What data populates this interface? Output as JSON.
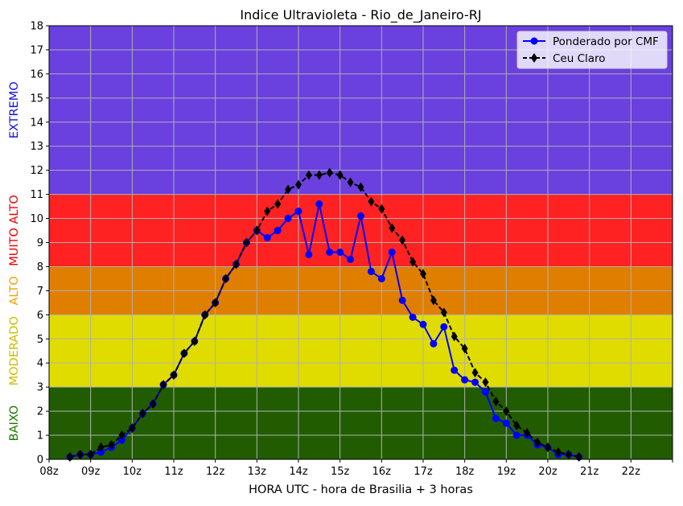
{
  "chart_data": {
    "type": "line",
    "title": "Indice Ultravioleta - Rio_de_Janeiro-RJ",
    "xlabel": "HORA UTC - hora de Brasilia + 3 horas",
    "ylabel": "",
    "xlim": [
      8,
      23
    ],
    "ylim": [
      0,
      18
    ],
    "grid": true,
    "legend_position": "top-right",
    "x_ticks": [
      8,
      9,
      10,
      11,
      12,
      13,
      14,
      15,
      16,
      17,
      18,
      19,
      20,
      21,
      22,
      23
    ],
    "x_tick_labels": [
      "08z",
      "09z",
      "10z",
      "11z",
      "12z",
      "13z",
      "14z",
      "15z",
      "16z",
      "17z",
      "18z",
      "19z",
      "20z",
      "21z",
      "22z",
      ""
    ],
    "y_ticks": [
      0,
      1,
      2,
      3,
      4,
      5,
      6,
      7,
      8,
      9,
      10,
      11,
      12,
      13,
      14,
      15,
      16,
      17,
      18
    ],
    "bands": [
      {
        "label": "BAIXO",
        "from": 0,
        "to": 3,
        "color": "#215c00",
        "label_color": "#1a7a00"
      },
      {
        "label": "MODERADO",
        "from": 3,
        "to": 6,
        "color": "#e0dc00",
        "label_color": "#c8be00"
      },
      {
        "label": "ALTO",
        "from": 6,
        "to": 8,
        "color": "#e07e00",
        "label_color": "#f0a000"
      },
      {
        "label": "MUITO ALTO",
        "from": 8,
        "to": 11,
        "color": "#ff2222",
        "label_color": "#ee0000"
      },
      {
        "label": "EXTREMO",
        "from": 11,
        "to": 18,
        "color": "#6a40de",
        "label_color": "#1010e0"
      }
    ],
    "x": [
      8.5,
      8.75,
      9,
      9.25,
      9.5,
      9.75,
      10,
      10.25,
      10.5,
      10.75,
      11,
      11.25,
      11.5,
      11.75,
      12,
      12.25,
      12.5,
      12.75,
      13,
      13.25,
      13.5,
      13.75,
      14,
      14.25,
      14.5,
      14.75,
      15,
      15.25,
      15.5,
      15.75,
      16,
      16.25,
      16.5,
      16.75,
      17,
      17.25,
      17.5,
      17.75,
      18,
      18.25,
      18.5,
      18.75,
      19,
      19.25,
      19.5,
      19.75,
      20,
      20.25,
      20.5,
      20.75
    ],
    "series": [
      {
        "name": "Ponderado por CMF",
        "color": "#0000ff",
        "style": "solid",
        "marker": "circle",
        "values": [
          0.1,
          0.2,
          0.2,
          0.3,
          0.5,
          0.8,
          1.3,
          1.9,
          2.3,
          3.1,
          3.5,
          4.4,
          4.9,
          6.0,
          6.5,
          7.5,
          8.1,
          9.0,
          9.5,
          9.2,
          9.5,
          10.0,
          10.3,
          8.5,
          10.6,
          8.6,
          8.6,
          8.3,
          10.1,
          7.8,
          7.5,
          8.6,
          6.6,
          5.9,
          5.6,
          4.8,
          5.5,
          3.7,
          3.3,
          3.2,
          2.8,
          1.7,
          1.5,
          1.0,
          1.0,
          0.6,
          0.5,
          0.2,
          0.2,
          0.1
        ]
      },
      {
        "name": "Ceu Claro",
        "color": "#000000",
        "style": "dashed",
        "marker": "diamond",
        "values": [
          0.1,
          0.2,
          0.2,
          0.5,
          0.6,
          1.0,
          1.3,
          1.9,
          2.3,
          3.1,
          3.5,
          4.4,
          4.9,
          6.0,
          6.5,
          7.5,
          8.1,
          9.0,
          9.5,
          10.3,
          10.6,
          11.2,
          11.4,
          11.8,
          11.8,
          11.9,
          11.8,
          11.5,
          11.3,
          10.7,
          10.4,
          9.6,
          9.1,
          8.2,
          7.7,
          6.6,
          6.1,
          5.1,
          4.6,
          3.6,
          3.2,
          2.4,
          2.0,
          1.4,
          1.1,
          0.7,
          0.5,
          0.3,
          0.2,
          0.1
        ]
      }
    ]
  }
}
